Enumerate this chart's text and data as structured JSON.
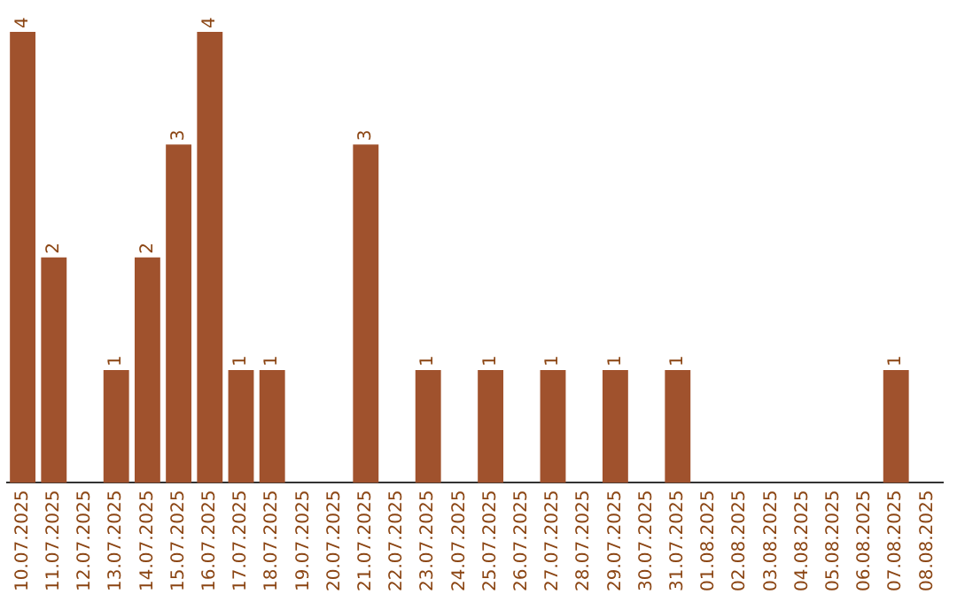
{
  "chart_data": {
    "type": "bar",
    "categories": [
      "10.07.2025",
      "11.07.2025",
      "12.07.2025",
      "13.07.2025",
      "14.07.2025",
      "15.07.2025",
      "16.07.2025",
      "17.07.2025",
      "18.07.2025",
      "19.07.2025",
      "20.07.2025",
      "21.07.2025",
      "22.07.2025",
      "23.07.2025",
      "24.07.2025",
      "25.07.2025",
      "26.07.2025",
      "27.07.2025",
      "28.07.2025",
      "29.07.2025",
      "30.07.2025",
      "31.07.2025",
      "01.08.2025",
      "02.08.2025",
      "03.08.2025",
      "04.08.2025",
      "05.08.2025",
      "06.08.2025",
      "07.08.2025",
      "08.08.2025"
    ],
    "values": [
      4,
      2,
      0,
      1,
      2,
      3,
      4,
      1,
      1,
      0,
      0,
      3,
      0,
      1,
      0,
      1,
      0,
      1,
      0,
      1,
      0,
      1,
      0,
      0,
      0,
      0,
      0,
      0,
      1,
      0
    ],
    "value_labels": [
      "4",
      "2",
      null,
      "1",
      "2",
      "3",
      "4",
      "1",
      "1",
      null,
      null,
      "3",
      null,
      "1",
      null,
      "1",
      null,
      "1",
      null,
      "1",
      null,
      "1",
      null,
      null,
      null,
      null,
      null,
      null,
      "1",
      null
    ],
    "color": "#a0522d",
    "tick_labels": "x",
    "grid": false,
    "legend": false
  }
}
